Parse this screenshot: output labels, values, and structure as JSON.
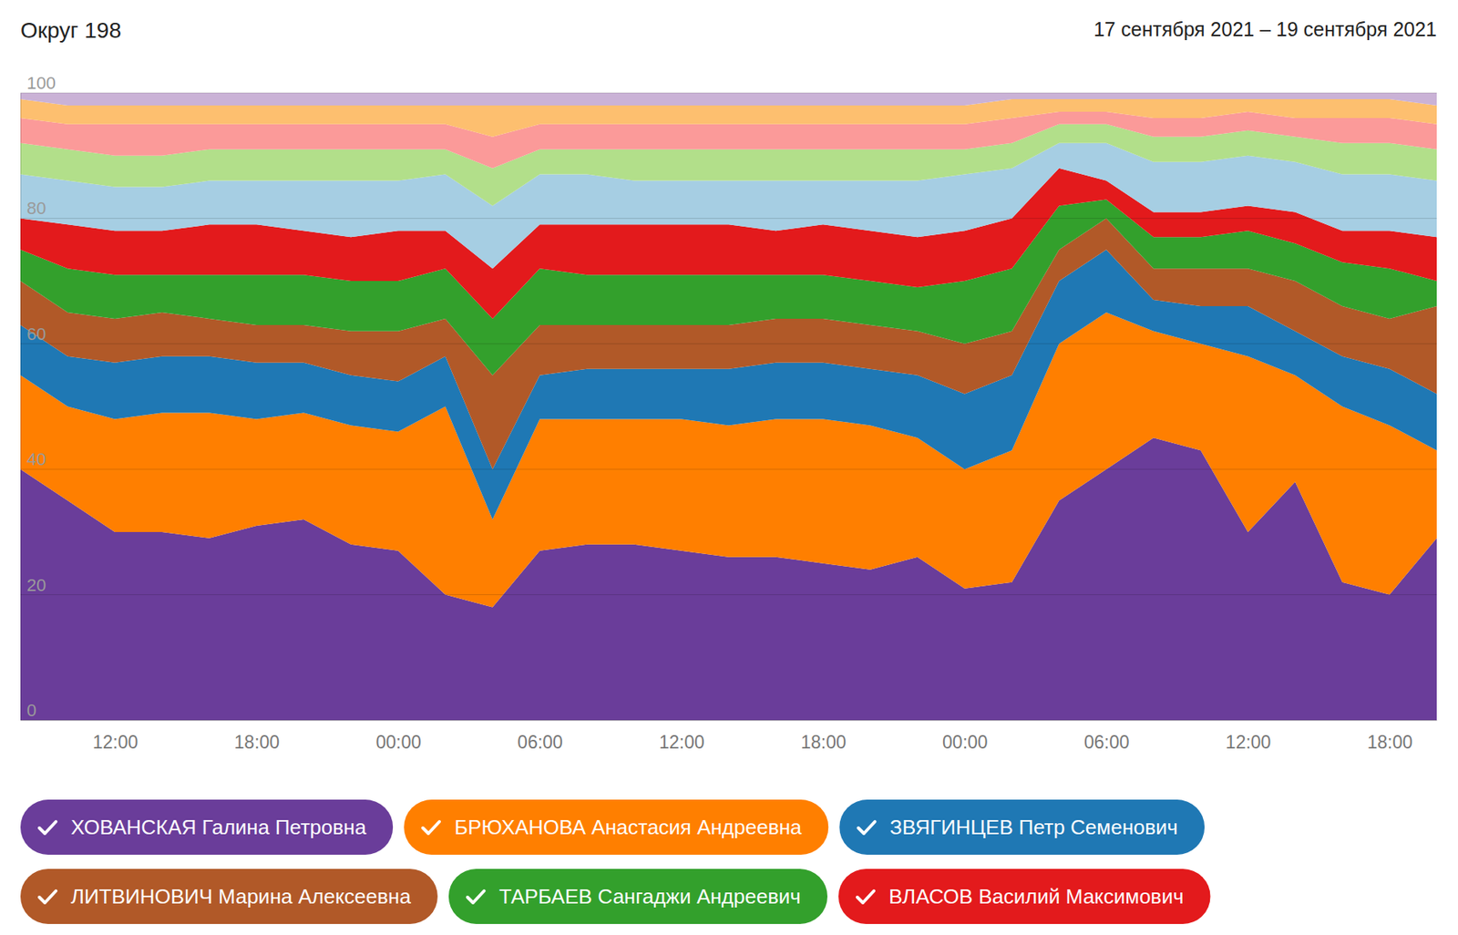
{
  "chart_data": {
    "type": "area",
    "title": "Округ 198",
    "subtitle": "17 сентября 2021 – 19 сентября 2021",
    "stacked": true,
    "grid": true,
    "legend": "bottom",
    "x": [
      8,
      10,
      12,
      14,
      16,
      18,
      20,
      22,
      24,
      26,
      28,
      30,
      32,
      34,
      36,
      38,
      40,
      42,
      44,
      46,
      48,
      50,
      52,
      54,
      56,
      58,
      60,
      62,
      64,
      66,
      68
    ],
    "xlim": [
      8,
      68
    ],
    "xticks": [
      {
        "value": 12,
        "label": "12:00"
      },
      {
        "value": 18,
        "label": "18:00"
      },
      {
        "value": 24,
        "label": "00:00"
      },
      {
        "value": 30,
        "label": "06:00"
      },
      {
        "value": 36,
        "label": "12:00"
      },
      {
        "value": 42,
        "label": "18:00"
      },
      {
        "value": 48,
        "label": "00:00"
      },
      {
        "value": 54,
        "label": "06:00"
      },
      {
        "value": 60,
        "label": "12:00"
      },
      {
        "value": 66,
        "label": "18:00"
      }
    ],
    "ylim": [
      0,
      100
    ],
    "yticks": [
      0,
      20,
      40,
      60,
      80,
      100
    ],
    "series": [
      {
        "name": "ХОВАНСКАЯ Галина Петровна",
        "color": "#6a3d9a",
        "values": [
          40,
          35,
          30,
          30,
          29,
          31,
          32,
          28,
          27,
          20,
          18,
          27,
          28,
          28,
          27,
          26,
          26,
          25,
          24,
          26,
          21,
          22,
          35,
          40,
          45,
          43,
          30,
          38,
          22,
          20,
          29
        ]
      },
      {
        "name": "БРЮХАНОВА Анастасия Андреевна",
        "color": "#ff7f00",
        "values": [
          15,
          15,
          18,
          19,
          20,
          17,
          17,
          19,
          19,
          30,
          14,
          21,
          20,
          20,
          21,
          21,
          22,
          23,
          23,
          19,
          19,
          21,
          25,
          25,
          17,
          17,
          28,
          17,
          28,
          27,
          14
        ]
      },
      {
        "name": "ЗВЯГИНЦЕВ Петр Семенович",
        "color": "#1f78b4",
        "values": [
          8,
          8,
          9,
          9,
          9,
          9,
          8,
          8,
          8,
          8,
          8,
          7,
          8,
          8,
          8,
          9,
          9,
          9,
          9,
          10,
          12,
          12,
          10,
          10,
          5,
          6,
          8,
          7,
          8,
          9,
          9
        ]
      },
      {
        "name": "ЛИТВИНОВИЧ Марина Алексеевна",
        "color": "#b15928",
        "values": [
          7,
          7,
          7,
          7,
          6,
          6,
          6,
          7,
          8,
          6,
          15,
          8,
          7,
          7,
          7,
          7,
          7,
          7,
          7,
          7,
          8,
          7,
          5,
          5,
          5,
          6,
          6,
          8,
          8,
          8,
          14
        ]
      },
      {
        "name": "ТАРБАЕВ Сангаджи Андреевич",
        "color": "#33a02c",
        "values": [
          5,
          7,
          7,
          6,
          7,
          8,
          8,
          8,
          8,
          8,
          9,
          9,
          8,
          8,
          8,
          8,
          7,
          7,
          7,
          7,
          10,
          10,
          7,
          3,
          5,
          5,
          6,
          6,
          7,
          8,
          4
        ]
      },
      {
        "name": "ВЛАСОВ Василий Максимович",
        "color": "#e31a1c",
        "values": [
          5,
          7,
          7,
          7,
          8,
          8,
          7,
          7,
          8,
          6,
          8,
          7,
          8,
          8,
          8,
          8,
          7,
          8,
          8,
          8,
          8,
          8,
          6,
          3,
          4,
          4,
          4,
          5,
          5,
          6,
          7
        ]
      },
      {
        "name": null,
        "color": "#a6cee3",
        "values": [
          7,
          7,
          7,
          7,
          7,
          7,
          8,
          9,
          8,
          9,
          10,
          8,
          8,
          7,
          7,
          7,
          8,
          7,
          8,
          9,
          9,
          8,
          4,
          6,
          8,
          8,
          8,
          8,
          9,
          9,
          9
        ]
      },
      {
        "name": null,
        "color": "#b2df8a",
        "values": [
          5,
          5,
          5,
          5,
          5,
          5,
          5,
          5,
          5,
          4,
          6,
          4,
          4,
          5,
          5,
          5,
          5,
          5,
          5,
          5,
          4,
          4,
          3,
          3,
          4,
          4,
          4,
          4,
          5,
          5,
          5
        ]
      },
      {
        "name": null,
        "color": "#fb9a99",
        "values": [
          4,
          4,
          5,
          5,
          4,
          4,
          4,
          4,
          4,
          4,
          5,
          4,
          4,
          4,
          4,
          4,
          4,
          4,
          4,
          4,
          4,
          4,
          2,
          2,
          3,
          3,
          3,
          3,
          4,
          4,
          4
        ]
      },
      {
        "name": null,
        "color": "#fdbf6f",
        "values": [
          3,
          3,
          3,
          3,
          3,
          3,
          3,
          3,
          3,
          3,
          5,
          3,
          3,
          3,
          3,
          3,
          3,
          3,
          3,
          3,
          3,
          3,
          2,
          2,
          3,
          3,
          2,
          3,
          3,
          3,
          3
        ]
      },
      {
        "name": null,
        "color": "#cab2d6",
        "values": [
          1,
          2,
          2,
          2,
          2,
          2,
          2,
          2,
          2,
          2,
          2,
          2,
          2,
          2,
          2,
          2,
          2,
          2,
          2,
          2,
          2,
          1,
          1,
          1,
          1,
          1,
          1,
          1,
          1,
          1,
          2
        ]
      }
    ]
  }
}
